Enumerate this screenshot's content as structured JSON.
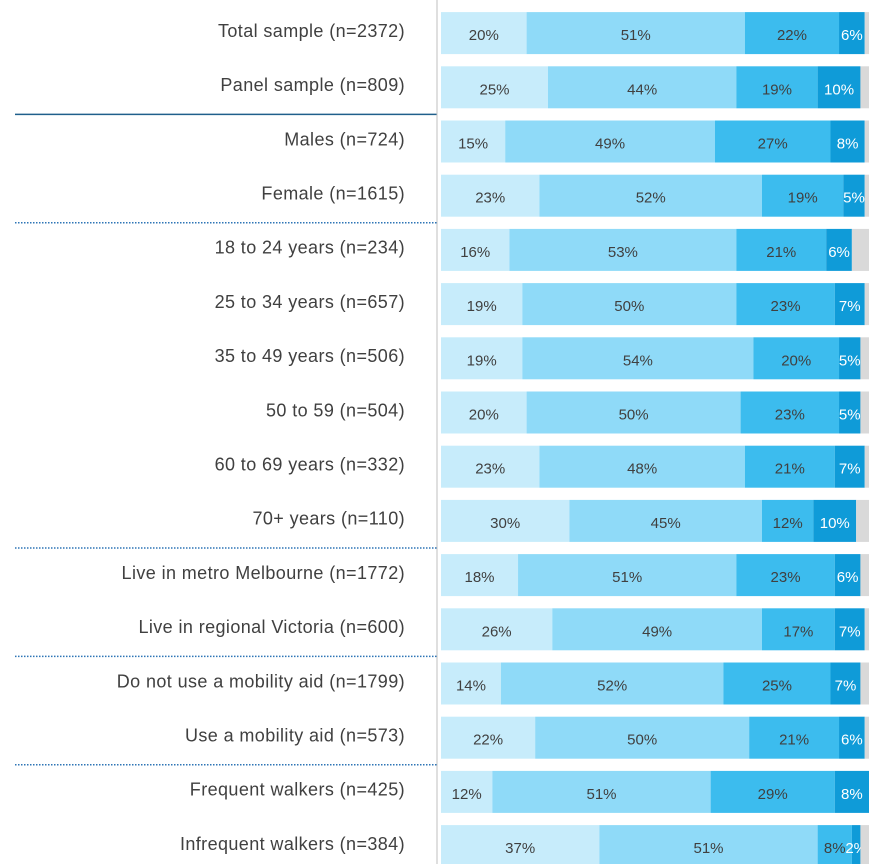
{
  "chart_data": {
    "type": "stacked-bar",
    "categories": [
      "Total sample (n=2372)",
      "Panel sample (n=809)",
      "Males (n=724)",
      "Female (n=1615)",
      "18 to 24 years (n=234)",
      "25 to 34 years (n=657)",
      "35 to 49 years (n=506)",
      "50 to 59 (n=504)",
      "60 to 69 years (n=332)",
      "70+ years (n=110)",
      "Live in metro Melbourne (n=1772)",
      "Live in regional Victoria (n=600)",
      "Do not use a mobility aid (n=1799)",
      "Use a mobility aid (n=573)",
      "Frequent walkers (n=425)",
      "Infrequent walkers (n=384)"
    ],
    "xlim": [
      0,
      100
    ],
    "series": [
      {
        "color": "#c7ecfb",
        "values": [
          20,
          25,
          15,
          23,
          16,
          19,
          19,
          20,
          23,
          30,
          18,
          26,
          14,
          22,
          12,
          37
        ],
        "value_labels": [
          "20%",
          "25%",
          "15%",
          "23%",
          "16%",
          "19%",
          "19%",
          "20%",
          "23%",
          "30%",
          "18%",
          "26%",
          "14%",
          "22%",
          "12%",
          "37%"
        ]
      },
      {
        "color": "#8fdaf8",
        "values": [
          51,
          44,
          49,
          52,
          53,
          50,
          54,
          50,
          48,
          45,
          51,
          49,
          52,
          50,
          51,
          51
        ],
        "value_labels": [
          "51%",
          "44%",
          "49%",
          "52%",
          "53%",
          "50%",
          "54%",
          "50%",
          "48%",
          "45%",
          "51%",
          "49%",
          "52%",
          "50%",
          "51%",
          "51%"
        ]
      },
      {
        "color": "#3cbcee",
        "values": [
          22,
          19,
          27,
          19,
          21,
          23,
          20,
          23,
          21,
          12,
          23,
          17,
          25,
          21,
          29,
          8
        ],
        "value_labels": [
          "22%",
          "19%",
          "27%",
          "19%",
          "21%",
          "23%",
          "20%",
          "23%",
          "21%",
          "12%",
          "23%",
          "17%",
          "25%",
          "21%",
          "29%",
          "8%"
        ]
      },
      {
        "color": "#0f9bd8",
        "values": [
          6,
          10,
          8,
          5,
          6,
          7,
          5,
          5,
          7,
          10,
          6,
          7,
          7,
          6,
          8,
          2
        ],
        "value_labels": [
          "6%",
          "10%",
          "8%",
          "5%",
          "6%",
          "7%",
          "5%",
          "5%",
          "7%",
          "10%",
          "6%",
          "7%",
          "7%",
          "6%",
          "8%",
          "2%"
        ]
      },
      {
        "color": "#d9d9d9",
        "values": [
          1,
          2,
          1,
          1,
          4,
          1,
          2,
          2,
          1,
          3,
          2,
          1,
          2,
          1,
          0,
          2
        ]
      }
    ]
  }
}
